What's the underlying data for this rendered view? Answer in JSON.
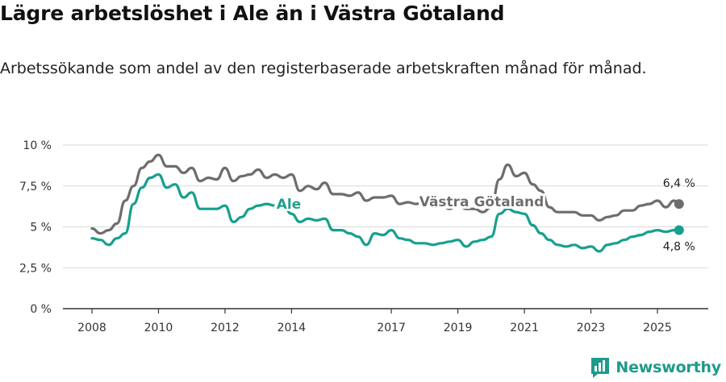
{
  "header": {
    "title": "Lägre arbetslöshet i Ale än i Västra Götaland",
    "subtitle": "Arbetssökande som andel av den registerbaserade arbetskraften månad för månad."
  },
  "brand": {
    "name": "Newsworthy",
    "icon": "newsworthy-logo-icon"
  },
  "chart_data": {
    "type": "line",
    "title": "Lägre arbetslöshet i Ale än i Västra Götaland",
    "subtitle": "Arbetssökande som andel av den registerbaserade arbetskraften månad för månad.",
    "xlabel": "",
    "ylabel": "",
    "xlim": [
      2008,
      2025.9
    ],
    "ylim": [
      0,
      10
    ],
    "grid": true,
    "yticks": [
      {
        "value": 0,
        "label": "0 %"
      },
      {
        "value": 2.5,
        "label": "2,5 %"
      },
      {
        "value": 5,
        "label": "5 %"
      },
      {
        "value": 7.5,
        "label": "7,5 %"
      },
      {
        "value": 10,
        "label": "10 %"
      }
    ],
    "xticks": [
      {
        "value": 2008,
        "label": "2008"
      },
      {
        "value": 2010,
        "label": "2010"
      },
      {
        "value": 2012,
        "label": "2012"
      },
      {
        "value": 2014,
        "label": "2014"
      },
      {
        "value": 2017,
        "label": "2017"
      },
      {
        "value": 2019,
        "label": "2019"
      },
      {
        "value": 2021,
        "label": "2021"
      },
      {
        "value": 2023,
        "label": "2023"
      },
      {
        "value": 2025,
        "label": "2025"
      }
    ],
    "series": [
      {
        "name": "Västra Götaland",
        "color": "#6d6d6d",
        "end_label": "6,4 %",
        "x": [
          2008.0,
          2008.25,
          2008.5,
          2008.75,
          2009.0,
          2009.25,
          2009.5,
          2009.75,
          2010.0,
          2010.25,
          2010.5,
          2010.75,
          2011.0,
          2011.25,
          2011.5,
          2011.75,
          2012.0,
          2012.25,
          2012.5,
          2012.75,
          2013.0,
          2013.25,
          2013.5,
          2013.75,
          2014.0,
          2014.25,
          2014.5,
          2014.75,
          2015.0,
          2015.25,
          2015.5,
          2015.75,
          2016.0,
          2016.25,
          2016.5,
          2016.75,
          2017.0,
          2017.25,
          2017.5,
          2017.75,
          2018.0,
          2018.25,
          2018.5,
          2018.75,
          2019.0,
          2019.25,
          2019.5,
          2019.75,
          2020.0,
          2020.25,
          2020.5,
          2020.75,
          2021.0,
          2021.25,
          2021.5,
          2021.75,
          2022.0,
          2022.25,
          2022.5,
          2022.75,
          2023.0,
          2023.25,
          2023.5,
          2023.75,
          2024.0,
          2024.25,
          2024.5,
          2024.75,
          2025.0,
          2025.25,
          2025.5,
          2025.65
        ],
        "values": [
          4.9,
          4.6,
          4.8,
          5.2,
          6.6,
          7.5,
          8.6,
          9.0,
          9.4,
          8.7,
          8.7,
          8.3,
          8.6,
          7.8,
          8.0,
          7.9,
          8.6,
          7.8,
          8.1,
          8.2,
          8.5,
          8.0,
          8.2,
          8.0,
          8.2,
          7.2,
          7.5,
          7.3,
          7.7,
          7.0,
          7.0,
          6.9,
          7.1,
          6.6,
          6.8,
          6.8,
          6.9,
          6.4,
          6.5,
          6.4,
          6.6,
          6.3,
          6.4,
          6.1,
          6.4,
          6.1,
          6.1,
          5.9,
          6.2,
          7.9,
          8.8,
          8.1,
          8.3,
          7.6,
          7.2,
          6.2,
          5.9,
          5.9,
          5.9,
          5.7,
          5.7,
          5.4,
          5.6,
          5.7,
          6.0,
          6.0,
          6.3,
          6.4,
          6.6,
          6.2,
          6.6,
          6.4
        ]
      },
      {
        "name": "Ale",
        "color": "#16a08f",
        "end_label": "4,8 %",
        "x": [
          2008.0,
          2008.25,
          2008.5,
          2008.75,
          2009.0,
          2009.25,
          2009.5,
          2009.75,
          2010.0,
          2010.25,
          2010.5,
          2010.75,
          2011.0,
          2011.25,
          2011.5,
          2011.75,
          2012.0,
          2012.25,
          2012.5,
          2012.75,
          2013.0,
          2013.25,
          2013.5,
          2013.75,
          2014.0,
          2014.25,
          2014.5,
          2014.75,
          2015.0,
          2015.25,
          2015.5,
          2015.75,
          2016.0,
          2016.25,
          2016.5,
          2016.75,
          2017.0,
          2017.25,
          2017.5,
          2017.75,
          2018.0,
          2018.25,
          2018.5,
          2018.75,
          2019.0,
          2019.25,
          2019.5,
          2019.75,
          2020.0,
          2020.25,
          2020.5,
          2020.75,
          2021.0,
          2021.25,
          2021.5,
          2021.75,
          2022.0,
          2022.25,
          2022.5,
          2022.75,
          2023.0,
          2023.25,
          2023.5,
          2023.75,
          2024.0,
          2024.25,
          2024.5,
          2024.75,
          2025.0,
          2025.25,
          2025.5,
          2025.65
        ],
        "values": [
          4.3,
          4.2,
          3.9,
          4.3,
          4.6,
          6.4,
          7.4,
          8.0,
          8.2,
          7.4,
          7.6,
          6.8,
          7.1,
          6.1,
          6.1,
          6.1,
          6.3,
          5.3,
          5.6,
          6.1,
          6.3,
          6.4,
          6.3,
          6.3,
          5.8,
          5.3,
          5.5,
          5.4,
          5.5,
          4.8,
          4.8,
          4.6,
          4.4,
          3.9,
          4.6,
          4.5,
          4.8,
          4.3,
          4.2,
          4.0,
          4.0,
          3.9,
          4.0,
          4.1,
          4.2,
          3.8,
          4.1,
          4.2,
          4.4,
          5.8,
          6.1,
          5.9,
          5.8,
          5.1,
          4.6,
          4.2,
          3.9,
          3.8,
          3.9,
          3.7,
          3.8,
          3.5,
          3.9,
          4.0,
          4.2,
          4.4,
          4.5,
          4.7,
          4.8,
          4.7,
          4.8,
          4.8
        ]
      }
    ]
  }
}
